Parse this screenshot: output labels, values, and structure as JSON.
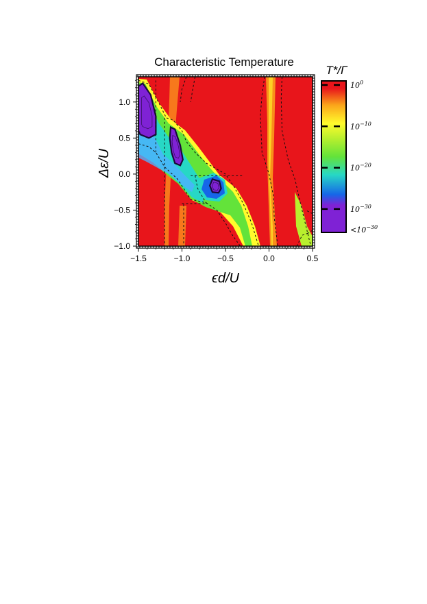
{
  "chart_data": {
    "type": "heatmap",
    "title": "Characteristic Temperature",
    "xlabel": "ϵd/U",
    "ylabel": "Δε/U",
    "xlim": [
      -1.5,
      0.5
    ],
    "ylim": [
      -1.0,
      1.35
    ],
    "x_ticks": [
      {
        "value": -1.5,
        "label": "−1.5"
      },
      {
        "value": -1.0,
        "label": "−1.0"
      },
      {
        "value": -0.5,
        "label": "−0.5"
      },
      {
        "value": 0.0,
        "label": "0.0"
      },
      {
        "value": 0.5,
        "label": "0.5"
      }
    ],
    "y_ticks": [
      {
        "value": -1.0,
        "label": "−1.0"
      },
      {
        "value": -0.5,
        "label": "−0.5"
      },
      {
        "value": 0.0,
        "label": "0.0"
      },
      {
        "value": 0.5,
        "label": "0.5"
      },
      {
        "value": 1.0,
        "label": "1.0"
      }
    ],
    "colorbar": {
      "title": "T*/Γ",
      "ticks": [
        {
          "exp": 0,
          "label": "10^0"
        },
        {
          "exp": -10,
          "label": "10^−10"
        },
        {
          "exp": -20,
          "label": "10^−20"
        },
        {
          "exp": -30,
          "label": "10^−30"
        },
        {
          "exp": -35,
          "label": "<10^−30"
        }
      ],
      "colors": [
        "#e8151b",
        "#fba51a",
        "#fffb2c",
        "#63e33a",
        "#27d8c5",
        "#1666e8",
        "#7f22d5"
      ]
    },
    "regions": [
      {
        "level": "violet",
        "points": [
          [
            -1.5,
            1.22
          ],
          [
            -1.45,
            1.26
          ],
          [
            -1.36,
            1.1
          ],
          [
            -1.3,
            0.8
          ],
          [
            -1.3,
            0.55
          ],
          [
            -1.38,
            0.5
          ],
          [
            -1.48,
            0.55
          ],
          [
            -1.5,
            0.6
          ]
        ]
      },
      {
        "level": "violet",
        "points": [
          [
            -1.13,
            0.65
          ],
          [
            -1.08,
            0.62
          ],
          [
            -1.02,
            0.4
          ],
          [
            -0.99,
            0.2
          ],
          [
            -1.02,
            0.12
          ],
          [
            -1.08,
            0.15
          ],
          [
            -1.12,
            0.3
          ],
          [
            -1.14,
            0.5
          ]
        ]
      },
      {
        "level": "blue",
        "points": [
          [
            -0.65,
            -0.07
          ],
          [
            -0.57,
            -0.1
          ],
          [
            -0.55,
            -0.2
          ],
          [
            -0.58,
            -0.26
          ],
          [
            -0.65,
            -0.25
          ],
          [
            -0.68,
            -0.16
          ]
        ]
      }
    ],
    "dashed_lines": [
      [
        [
          -1.5,
          1.3
        ],
        [
          -1.38,
          1.25
        ],
        [
          -1.25,
          0.95
        ],
        [
          -1.18,
          0.78
        ],
        [
          -1.1,
          0.75
        ],
        [
          -1.0,
          0.6
        ],
        [
          -0.95,
          0.45
        ],
        [
          -0.85,
          0.3
        ],
        [
          -0.72,
          0.15
        ],
        [
          -0.5,
          0.0
        ],
        [
          -0.4,
          -0.18
        ],
        [
          -0.3,
          -0.4
        ],
        [
          -0.2,
          -0.68
        ],
        [
          -0.12,
          -1.0
        ]
      ],
      [
        [
          -1.5,
          0.42
        ],
        [
          -1.38,
          0.38
        ],
        [
          -1.3,
          0.3
        ],
        [
          -1.2,
          0.1
        ],
        [
          -1.05,
          -0.07
        ],
        [
          -0.9,
          -0.35
        ],
        [
          -0.72,
          -0.4
        ],
        [
          -0.6,
          -0.5
        ],
        [
          -0.5,
          -0.68
        ],
        [
          -0.42,
          -0.85
        ],
        [
          -0.33,
          -1.0
        ]
      ],
      [
        [
          -1.2,
          0.78
        ],
        [
          -1.2,
          -1.0
        ]
      ],
      [
        [
          -1.3,
          0.3
        ],
        [
          -1.3,
          1.3
        ]
      ],
      [
        [
          -0.95,
          1.35
        ],
        [
          -1.0,
          1.18
        ],
        [
          -1.02,
          1.0
        ]
      ],
      [
        [
          -0.98,
          -0.42
        ],
        [
          -0.98,
          -1.0
        ]
      ],
      [
        [
          -0.85,
          1.35
        ],
        [
          -0.88,
          1.15
        ],
        [
          -0.9,
          1.0
        ]
      ],
      [
        [
          -0.9,
          -0.02
        ],
        [
          -0.3,
          -0.02
        ]
      ],
      [
        [
          -1.0,
          -0.41
        ],
        [
          -0.72,
          -0.41
        ]
      ],
      [
        [
          -0.85,
          -0.02
        ],
        [
          -0.82,
          -0.2
        ],
        [
          -0.72,
          -0.41
        ]
      ],
      [
        [
          -0.05,
          1.35
        ],
        [
          -0.08,
          1.1
        ],
        [
          -0.1,
          0.8
        ],
        [
          -0.08,
          0.3
        ],
        [
          0.0,
          0.0
        ],
        [
          0.05,
          -0.3
        ],
        [
          0.06,
          -0.6
        ],
        [
          0.1,
          -1.0
        ]
      ],
      [
        [
          0.15,
          1.35
        ],
        [
          0.14,
          1.05
        ],
        [
          0.15,
          0.6
        ],
        [
          0.22,
          0.2
        ],
        [
          0.3,
          -0.08
        ],
        [
          0.36,
          -0.4
        ],
        [
          0.42,
          -0.7
        ],
        [
          0.48,
          -1.0
        ]
      ],
      [
        [
          0.5,
          -0.55
        ],
        [
          0.42,
          -0.5
        ]
      ],
      [
        [
          0.45,
          -0.82
        ],
        [
          0.38,
          -0.85
        ],
        [
          0.32,
          -1.0
        ]
      ],
      [
        [
          0.5,
          -0.78
        ],
        [
          0.45,
          -0.82
        ]
      ]
    ],
    "grid": false
  }
}
